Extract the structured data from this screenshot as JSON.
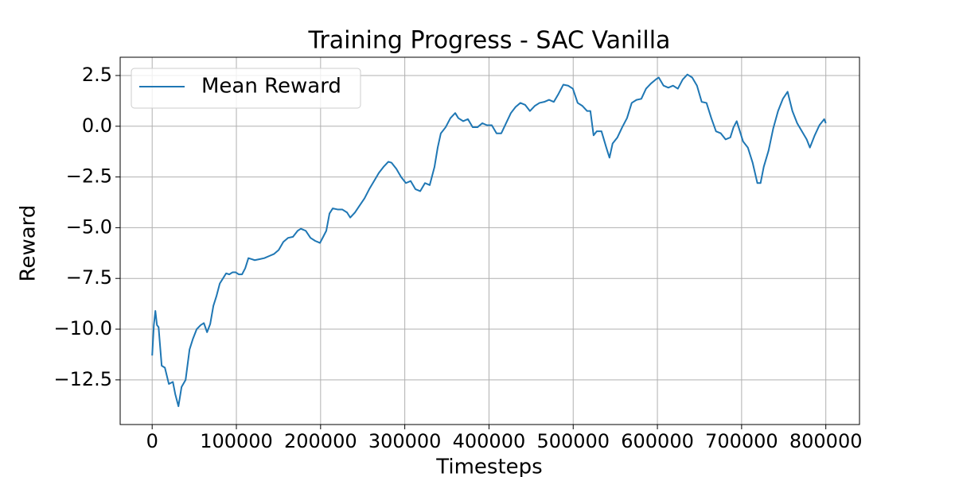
{
  "chart_data": {
    "type": "line",
    "title": "Training Progress - SAC Vanilla",
    "x_label": "Timesteps",
    "y_label": "Reward",
    "legend": "upper left",
    "grid": true,
    "xlim": [
      -38000,
      840000
    ],
    "ylim": [
      -14.7,
      3.4
    ],
    "xticks": [
      0,
      100000,
      200000,
      300000,
      400000,
      500000,
      600000,
      700000,
      800000
    ],
    "yticks": [
      {
        "value": -12.5,
        "label": "−12.5"
      },
      {
        "value": -10,
        "label": "−10.0"
      },
      {
        "value": -7.5,
        "label": "−7.5"
      },
      {
        "value": -5,
        "label": "−5.0"
      },
      {
        "value": -2.5,
        "label": "−2.5"
      },
      {
        "value": 0,
        "label": "0.0"
      },
      2.5
    ],
    "x": [
      0,
      2000,
      3800,
      5700,
      7600,
      11300,
      15100,
      19800,
      24600,
      27400,
      31200,
      34900,
      39700,
      44400,
      48200,
      52900,
      57600,
      61400,
      65200,
      68900,
      72700,
      76500,
      80300,
      84100,
      87800,
      91600,
      95400,
      99200,
      102900,
      106700,
      110500,
      114300,
      118100,
      121800,
      127500,
      133200,
      138800,
      144500,
      150200,
      155800,
      161500,
      167200,
      172800,
      176600,
      182300,
      188000,
      193600,
      199300,
      203100,
      206800,
      210600,
      214400,
      220100,
      225700,
      231400,
      235200,
      240800,
      246500,
      252200,
      257800,
      263500,
      269200,
      274800,
      280500,
      284300,
      290000,
      295600,
      301300,
      307000,
      312600,
      318300,
      324000,
      329600,
      335300,
      339100,
      342800,
      348500,
      354200,
      359900,
      363600,
      369300,
      375000,
      380600,
      386300,
      392000,
      397600,
      403300,
      409000,
      414600,
      420300,
      426000,
      431600,
      437300,
      443000,
      448600,
      454300,
      460000,
      465600,
      471300,
      477000,
      482600,
      488300,
      494000,
      499600,
      505300,
      511000,
      516600,
      520400,
      524200,
      528000,
      533600,
      539300,
      543100,
      546800,
      552500,
      558200,
      563900,
      569500,
      575200,
      580900,
      586500,
      592200,
      597900,
      601600,
      607300,
      613000,
      618600,
      624300,
      630000,
      635600,
      641300,
      647000,
      652600,
      658300,
      664000,
      669600,
      675300,
      681000,
      686600,
      690400,
      694200,
      698000,
      701700,
      707400,
      713100,
      718700,
      722500,
      726300,
      732000,
      737600,
      743300,
      749000,
      754600,
      760300,
      766000,
      771600,
      777300,
      781100,
      786800,
      792400,
      798100,
      800000
    ],
    "series": [
      {
        "name": "Mean Reward",
        "color": "#1f77b4",
        "values": [
          -11.3,
          -9.8,
          -9.1,
          -9.8,
          -9.9,
          -11.8,
          -11.9,
          -12.7,
          -12.6,
          -13.2,
          -13.8,
          -12.85,
          -12.5,
          -11.0,
          -10.5,
          -10.0,
          -9.8,
          -9.7,
          -10.15,
          -9.75,
          -8.85,
          -8.35,
          -7.75,
          -7.5,
          -7.25,
          -7.3,
          -7.2,
          -7.2,
          -7.3,
          -7.3,
          -7.0,
          -6.5,
          -6.55,
          -6.6,
          -6.55,
          -6.5,
          -6.4,
          -6.3,
          -6.1,
          -5.7,
          -5.5,
          -5.45,
          -5.15,
          -5.05,
          -5.15,
          -5.5,
          -5.65,
          -5.75,
          -5.45,
          -5.15,
          -4.3,
          -4.05,
          -4.1,
          -4.1,
          -4.25,
          -4.5,
          -4.25,
          -3.9,
          -3.55,
          -3.1,
          -2.7,
          -2.3,
          -2.0,
          -1.75,
          -1.8,
          -2.1,
          -2.5,
          -2.8,
          -2.7,
          -3.1,
          -3.2,
          -2.8,
          -2.9,
          -2.0,
          -1.05,
          -0.35,
          -0.05,
          0.4,
          0.65,
          0.4,
          0.25,
          0.35,
          -0.05,
          -0.05,
          0.15,
          0.05,
          0.05,
          -0.35,
          -0.35,
          0.15,
          0.65,
          0.95,
          1.15,
          1.05,
          0.75,
          1.0,
          1.15,
          1.2,
          1.3,
          1.2,
          1.6,
          2.05,
          2.0,
          1.85,
          1.15,
          1.0,
          0.75,
          0.75,
          -0.45,
          -0.25,
          -0.25,
          -1.05,
          -1.55,
          -0.85,
          -0.55,
          -0.05,
          0.4,
          1.15,
          1.3,
          1.35,
          1.85,
          2.1,
          2.3,
          2.4,
          2.0,
          1.9,
          2.0,
          1.85,
          2.3,
          2.55,
          2.4,
          2.0,
          1.2,
          1.15,
          0.4,
          -0.25,
          -0.35,
          -0.65,
          -0.55,
          -0.05,
          0.25,
          -0.25,
          -0.75,
          -1.05,
          -1.8,
          -2.8,
          -2.8,
          -2.0,
          -1.2,
          -0.1,
          0.75,
          1.35,
          1.7,
          0.75,
          0.15,
          -0.25,
          -0.65,
          -1.05,
          -0.45,
          0.05,
          0.35,
          0.15
        ]
      }
    ]
  }
}
